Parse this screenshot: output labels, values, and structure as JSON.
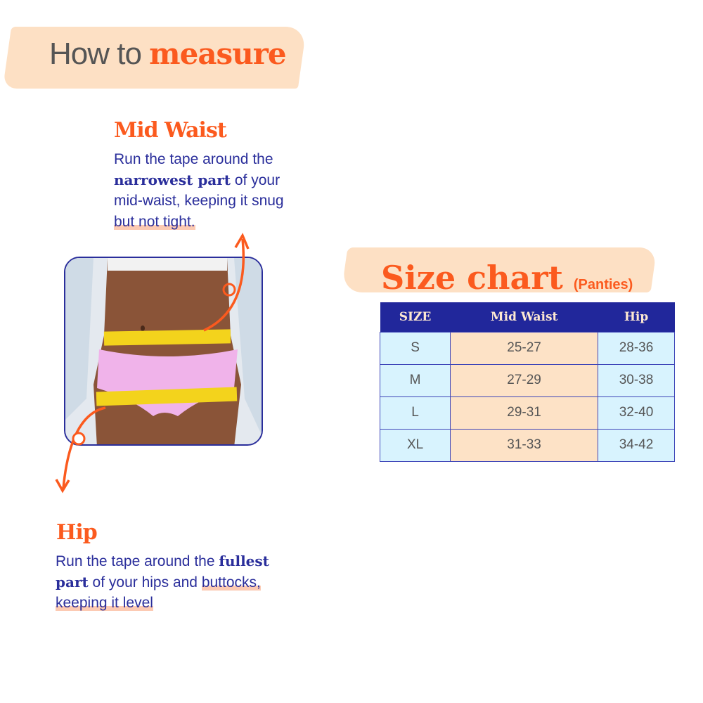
{
  "header": {
    "title_plain": "How to ",
    "title_bold": "measure"
  },
  "mid_waist": {
    "heading": "Mid Waist",
    "line1": "Run the tape around the",
    "bold": "narrowest part",
    "rest2": " of your",
    "line3": "mid-waist, keeping it snug",
    "line4": "but not tight."
  },
  "hip": {
    "heading": "Hip",
    "line1": "Run the tape around the ",
    "bold1": "fullest",
    "bold2": "part",
    "rest2a": " of your hips and ",
    "rest2b": "buttocks,",
    "line3": "keeping it level"
  },
  "size_chart": {
    "title": "Size chart",
    "subtitle": "(Panties)",
    "columns": [
      "SIZE",
      "Mid Waist",
      "Hip"
    ],
    "rows": [
      [
        "S",
        "25-27",
        "28-36"
      ],
      [
        "M",
        "27-29",
        "30-38"
      ],
      [
        "L",
        "29-31",
        "32-40"
      ],
      [
        "XL",
        "31-33",
        "34-42"
      ]
    ]
  },
  "colors": {
    "accent": "#fb5a1e",
    "navy": "#21279b",
    "peach": "#fde0c4",
    "light_blue": "#d8f3fe"
  }
}
